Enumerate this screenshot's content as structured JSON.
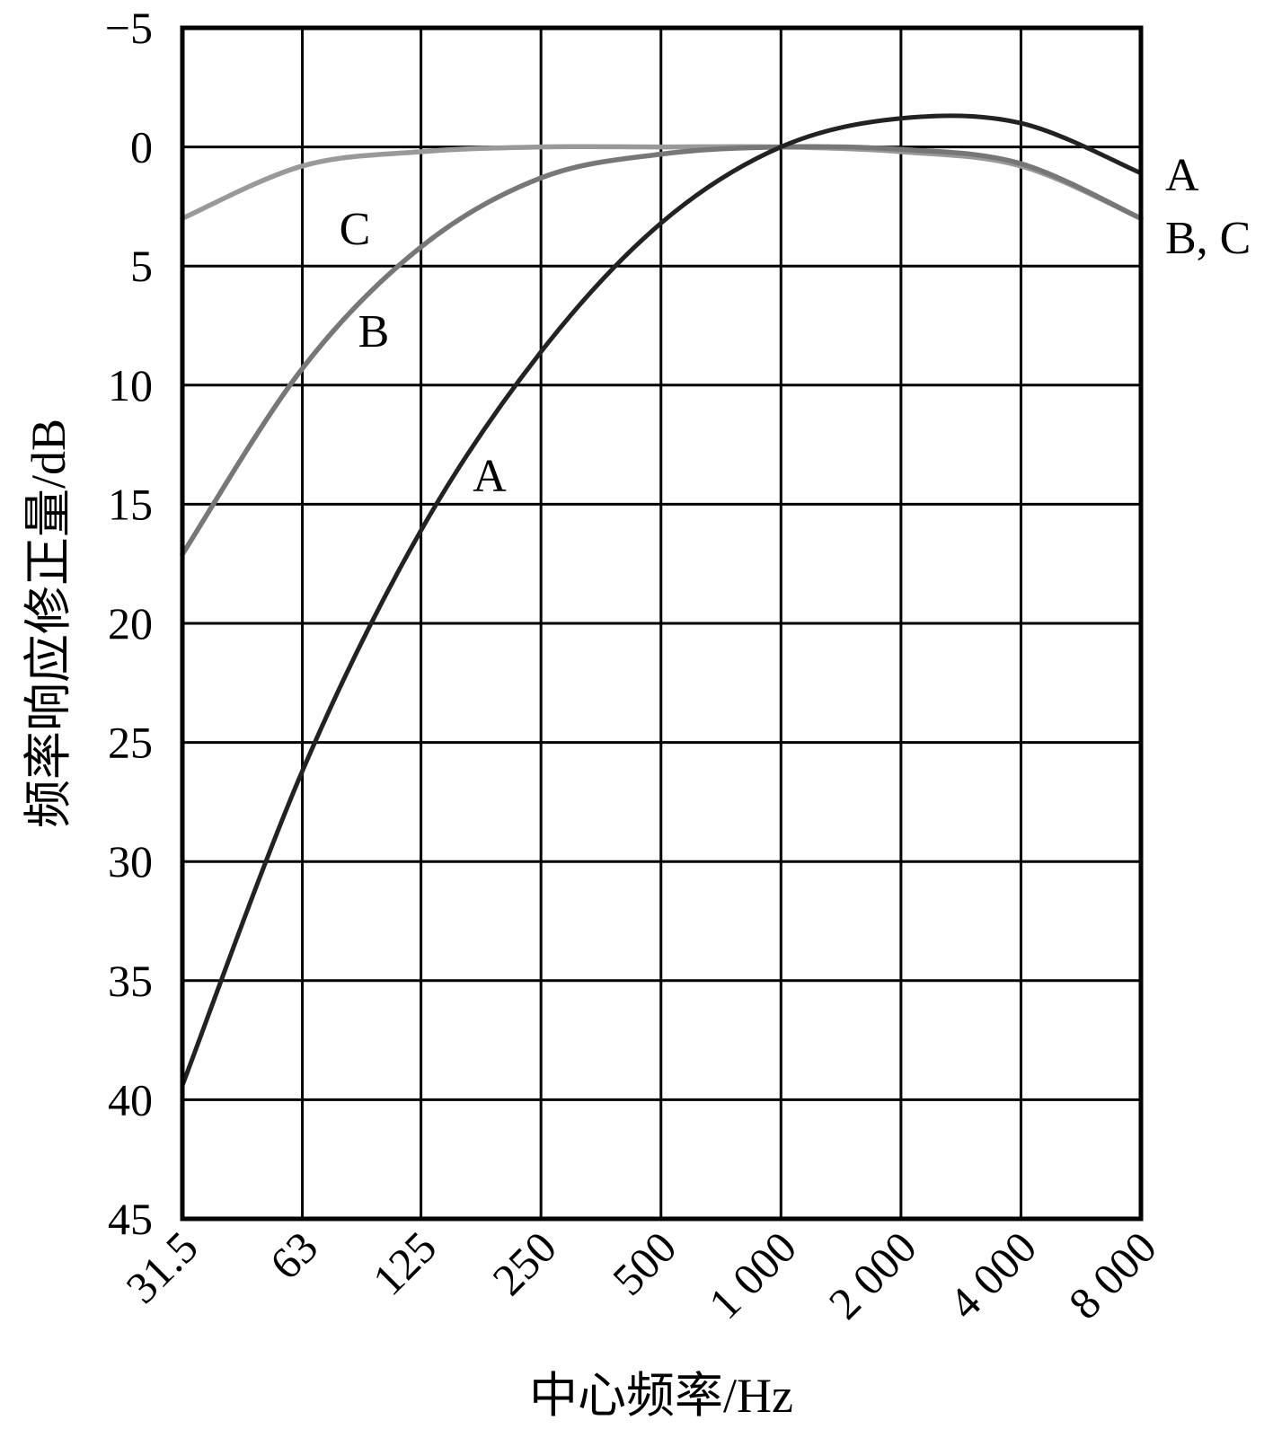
{
  "chart_data": {
    "type": "line",
    "xlabel": "中心频率/Hz",
    "ylabel": "频率响应修正量/dB",
    "x_scale": "log2",
    "y_inverted": true,
    "ylim": [
      -5,
      45
    ],
    "y_ticks": [
      "−5",
      "0",
      "5",
      "10",
      "15",
      "20",
      "25",
      "30",
      "35",
      "40",
      "45"
    ],
    "y_tick_values": [
      -5,
      0,
      5,
      10,
      15,
      20,
      25,
      30,
      35,
      40,
      45
    ],
    "x_tick_labels": [
      "31.5",
      "63",
      "125",
      "250",
      "500",
      "1 000",
      "2 000",
      "4 000",
      "8 000"
    ],
    "x_tick_values": [
      31.5,
      63,
      125,
      250,
      500,
      1000,
      2000,
      4000,
      8000
    ],
    "grid": true,
    "series": [
      {
        "name": "A",
        "color": "#222222",
        "x": [
          31.5,
          63,
          125,
          250,
          500,
          1000,
          2000,
          4000,
          8000
        ],
        "y": [
          39.4,
          26.2,
          16.1,
          8.6,
          3.2,
          0,
          -1.2,
          -1.0,
          1.1
        ]
      },
      {
        "name": "B",
        "color": "#777777",
        "x": [
          31.5,
          63,
          125,
          250,
          500,
          1000,
          2000,
          4000,
          8000
        ],
        "y": [
          17.1,
          9.3,
          4.2,
          1.3,
          0.3,
          0,
          0.1,
          0.7,
          3.0
        ]
      },
      {
        "name": "C",
        "color": "#999999",
        "x": [
          31.5,
          63,
          125,
          250,
          500,
          1000,
          2000,
          4000,
          8000
        ],
        "y": [
          3.0,
          0.8,
          0.2,
          0.0,
          0.0,
          0,
          0.2,
          0.8,
          3.0
        ]
      }
    ],
    "curve_labels": {
      "a_mid": "A",
      "b_mid": "B",
      "c_mid": "C",
      "a_right": "A",
      "bc_right": "B, C"
    }
  }
}
